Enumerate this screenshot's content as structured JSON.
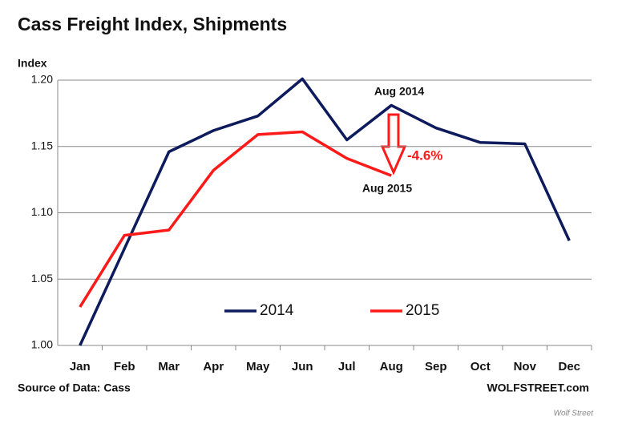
{
  "chart_data": {
    "type": "line",
    "title": "Cass Freight Index,  Shipments",
    "y_axis_label": "Index",
    "source": "Source of Data: Cass",
    "credit": "WOLFSTREET.com",
    "watermark": "Wolf Street",
    "annotations": [
      "Aug 2014",
      "Aug 2015",
      "-4.6%"
    ],
    "categories": [
      "Jan",
      "Feb",
      "Mar",
      "Apr",
      "May",
      "Jun",
      "Jul",
      "Aug",
      "Sep",
      "Oct",
      "Nov",
      "Dec"
    ],
    "series": [
      {
        "name": "2014",
        "color": "#0d1a5c",
        "values": [
          1.0,
          1.073,
          1.146,
          1.162,
          1.173,
          1.201,
          1.155,
          1.181,
          1.164,
          1.153,
          1.152,
          1.079
        ]
      },
      {
        "name": "2015",
        "color": "#ff1a1a",
        "values": [
          1.029,
          1.083,
          1.087,
          1.132,
          1.159,
          1.161,
          1.141,
          1.128,
          null,
          null,
          null,
          null
        ]
      }
    ],
    "ylim": [
      1.0,
      1.2
    ],
    "yticks": [
      {
        "value": 1.0,
        "label": "1.00"
      },
      1.05,
      {
        "value": 1.1,
        "label": "1.10"
      },
      1.15,
      {
        "value": 1.2,
        "label": "1.20"
      }
    ],
    "grid": true,
    "legend": "bottom"
  }
}
